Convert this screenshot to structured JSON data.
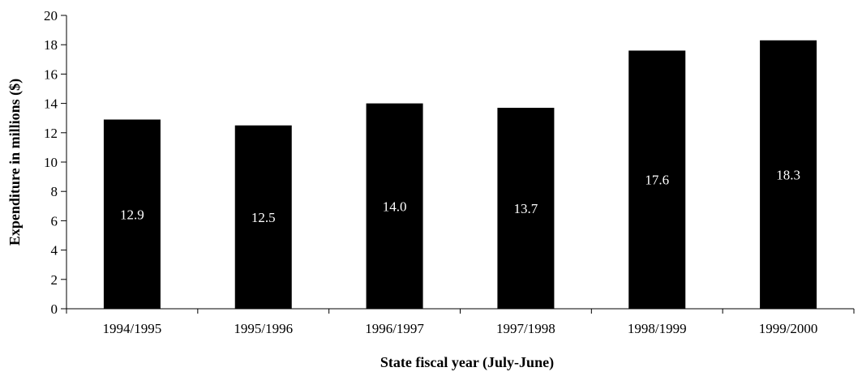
{
  "chart_data": {
    "type": "bar",
    "categories": [
      "1994/1995",
      "1995/1996",
      "1996/1997",
      "1997/1998",
      "1998/1999",
      "1999/2000"
    ],
    "values": [
      12.9,
      12.5,
      14.0,
      13.7,
      17.6,
      18.3
    ],
    "data_labels": [
      "12.9",
      "12.5",
      "14.0",
      "13.7",
      "17.6",
      "18.3"
    ],
    "xlabel": "State fiscal year (July-June)",
    "ylabel": "Expenditure in millions ($)",
    "ylim": [
      0,
      20
    ],
    "yticks": [
      0,
      2,
      4,
      6,
      8,
      10,
      12,
      14,
      16,
      18,
      20
    ],
    "grid": false,
    "bar_color": "#000000",
    "label_color": "#ffffff"
  }
}
